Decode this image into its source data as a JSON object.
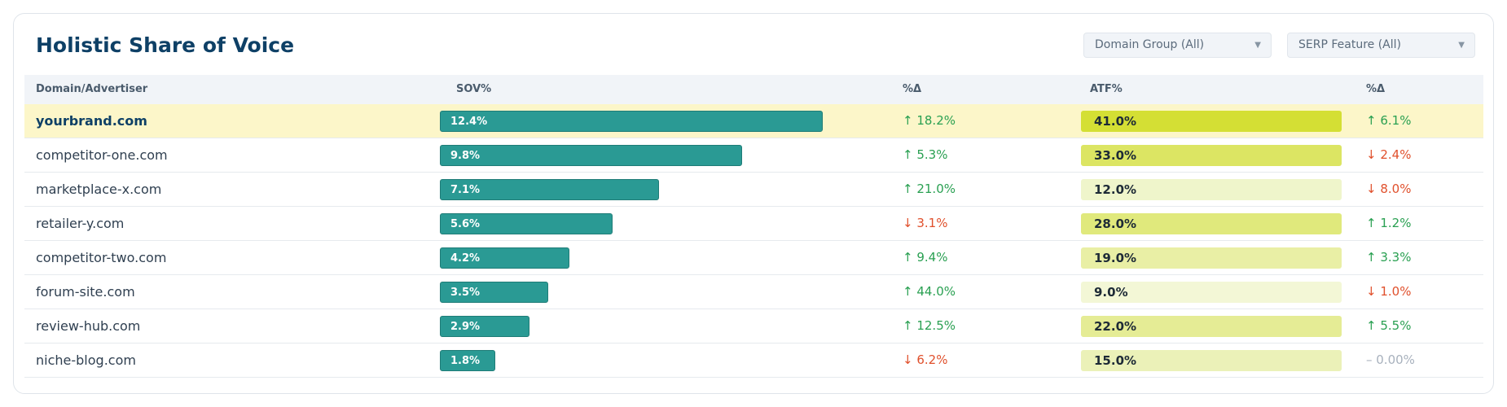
{
  "header": {
    "title": "Holistic Share of Voice",
    "filters": [
      {
        "label": "Domain Group (All)"
      },
      {
        "label": "SERP Feature (All)"
      }
    ]
  },
  "table": {
    "columns": [
      "Domain/Advertiser",
      "SOV%",
      "%Δ",
      "ATF%",
      "%Δ"
    ],
    "rows": [
      {
        "domain": "yourbrand.com",
        "sov": 12.4,
        "sov_label": "12.4%",
        "sov_delta": "↑ 18.2%",
        "sov_dir": "up",
        "atf": 41.0,
        "atf_label": "41.0%",
        "atf_color": "#d4df34",
        "atf_delta": "↑ 6.1%",
        "atf_dir": "up",
        "highlight": true
      },
      {
        "domain": "competitor-one.com",
        "sov": 9.8,
        "sov_label": "9.8%",
        "sov_delta": "↑ 5.3%",
        "sov_dir": "up",
        "atf": 33.0,
        "atf_label": "33.0%",
        "atf_color": "#dce563",
        "atf_delta": "↓ 2.4%",
        "atf_dir": "down"
      },
      {
        "domain": "marketplace-x.com",
        "sov": 7.1,
        "sov_label": "7.1%",
        "sov_delta": "↑ 21.0%",
        "sov_dir": "up",
        "atf": 12.0,
        "atf_label": "12.0%",
        "atf_color": "#eff5cb",
        "atf_delta": "↓ 8.0%",
        "atf_dir": "down"
      },
      {
        "domain": "retailer-y.com",
        "sov": 5.6,
        "sov_label": "5.6%",
        "sov_delta": "↓ 3.1%",
        "sov_dir": "down",
        "atf": 28.0,
        "atf_label": "28.0%",
        "atf_color": "#e0e97c",
        "atf_delta": "↑ 1.2%",
        "atf_dir": "up"
      },
      {
        "domain": "competitor-two.com",
        "sov": 4.2,
        "sov_label": "4.2%",
        "sov_delta": "↑ 9.4%",
        "sov_dir": "up",
        "atf": 19.0,
        "atf_label": "19.0%",
        "atf_color": "#e9efa5",
        "atf_delta": "↑ 3.3%",
        "atf_dir": "up"
      },
      {
        "domain": "forum-site.com",
        "sov": 3.5,
        "sov_label": "3.5%",
        "sov_delta": "↑ 44.0%",
        "sov_dir": "up",
        "atf": 9.0,
        "atf_label": "9.0%",
        "atf_color": "#f3f7d6",
        "atf_delta": "↓ 1.0%",
        "atf_dir": "down"
      },
      {
        "domain": "review-hub.com",
        "sov": 2.9,
        "sov_label": "2.9%",
        "sov_delta": "↑ 12.5%",
        "sov_dir": "up",
        "atf": 22.0,
        "atf_label": "22.0%",
        "atf_color": "#e5ec95",
        "atf_delta": "↑ 5.5%",
        "atf_dir": "up"
      },
      {
        "domain": "niche-blog.com",
        "sov": 1.8,
        "sov_label": "1.8%",
        "sov_delta": "↓ 6.2%",
        "sov_dir": "down",
        "atf": 15.0,
        "atf_label": "15.0%",
        "atf_color": "#ebf1b8",
        "atf_delta": "– 0.00%",
        "atf_dir": "flat"
      }
    ]
  },
  "colors": {
    "title": "#0e4066",
    "sov_bar": "#2a9a94",
    "up": "#2aa052",
    "down": "#e0502c",
    "highlight_row": "#fcf6c9"
  }
}
